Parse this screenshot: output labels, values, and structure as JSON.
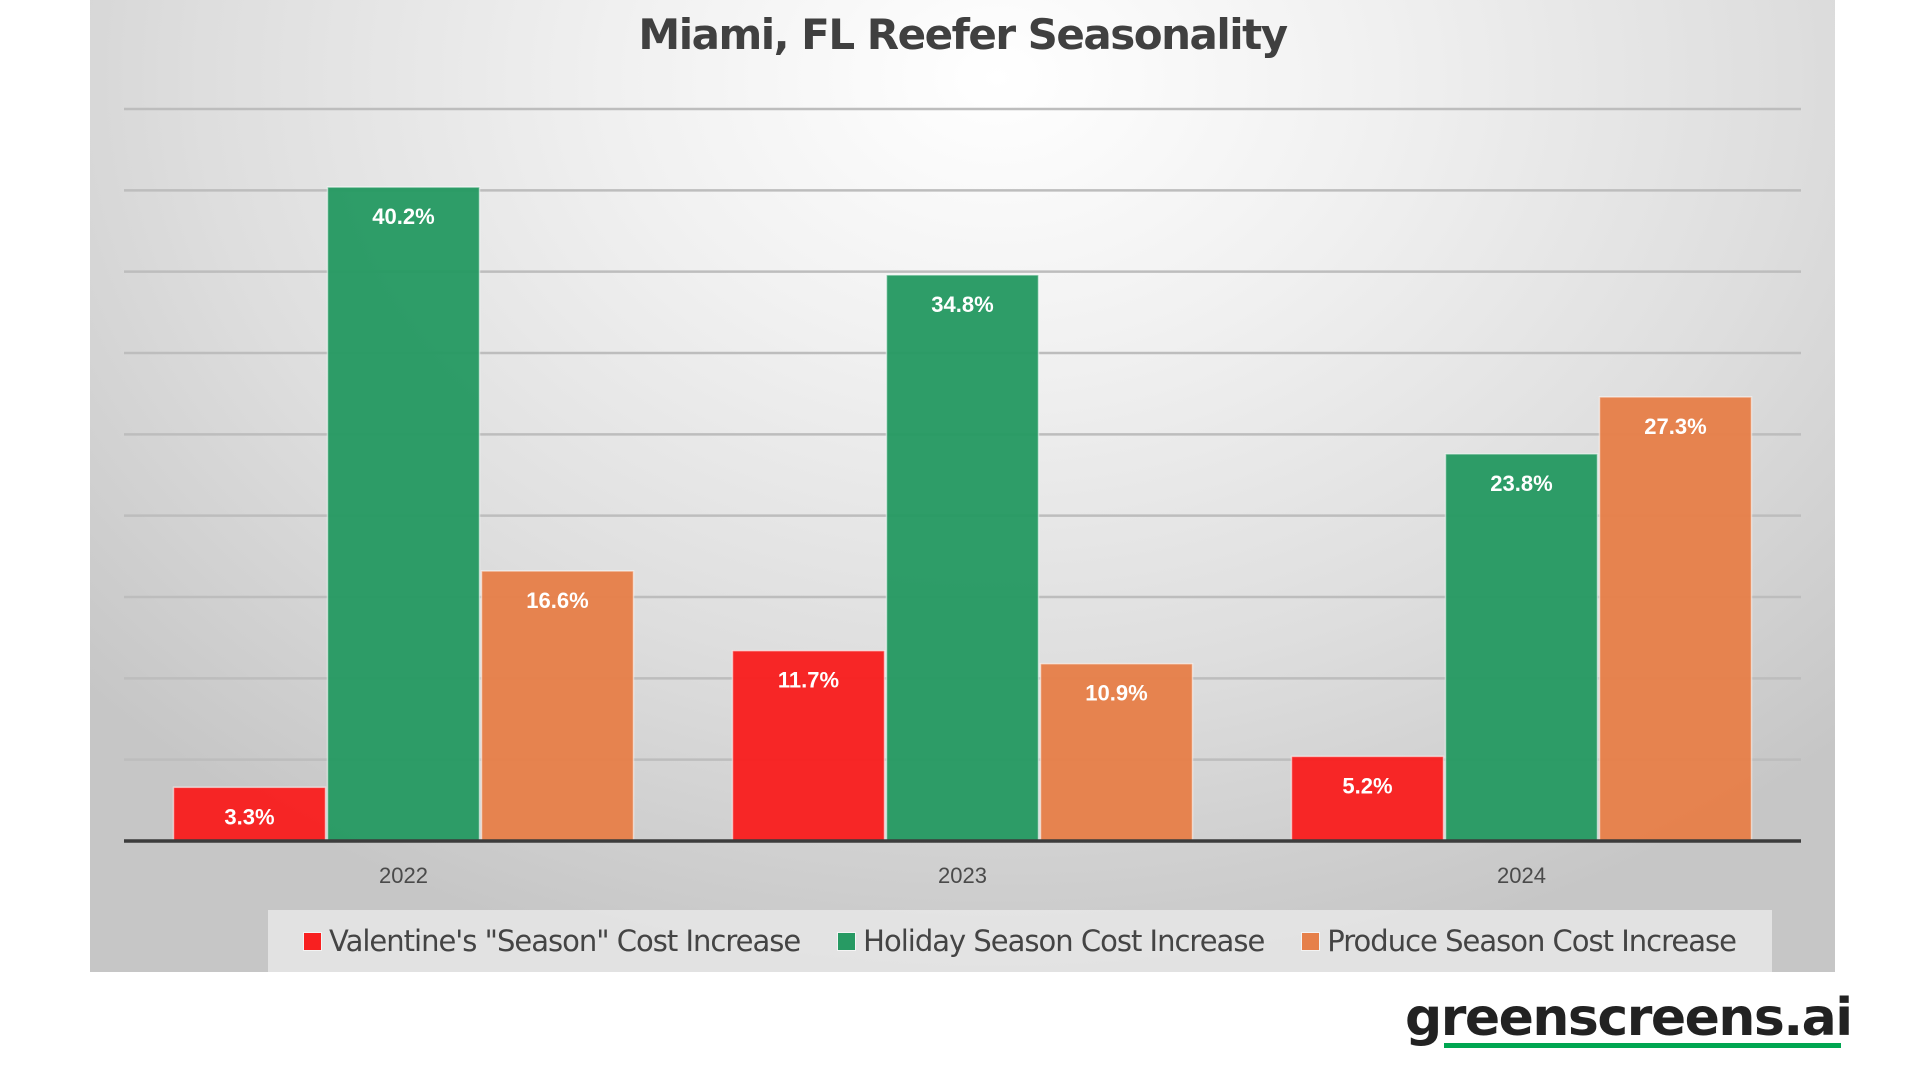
{
  "colors": {
    "valentines": "#f82020",
    "holiday": "#279a63",
    "produce": "#e6804a",
    "title": "#404040",
    "axis": "#3c3c3c",
    "gridline": "#bdbdbd",
    "data_label": "#ffffff",
    "logo_text": "#222222",
    "logo_underline": "#00a651"
  },
  "logo": {
    "text": "greenscreens.ai"
  },
  "chart_data": {
    "type": "bar",
    "title": "Miami, FL Reefer Seasonality",
    "xlabel": "",
    "ylabel": "",
    "categories": [
      "2022",
      "2023",
      "2024"
    ],
    "series": [
      {
        "name": "Valentine's \"Season\" Cost Increase",
        "color_key": "valentines",
        "values": [
          3.3,
          11.7,
          5.2
        ],
        "labels": [
          "3.3%",
          "11.7%",
          "5.2%"
        ]
      },
      {
        "name": "Holiday Season Cost Increase",
        "color_key": "holiday",
        "values": [
          40.2,
          34.8,
          23.8
        ],
        "labels": [
          "40.2%",
          "34.8%",
          "23.8%"
        ]
      },
      {
        "name": "Produce Season Cost Increase",
        "color_key": "produce",
        "values": [
          16.6,
          10.9,
          27.3
        ],
        "labels": [
          "16.6%",
          "10.9%",
          "27.3%"
        ]
      }
    ],
    "ylim": [
      0,
      45
    ],
    "y_grid_step": 5,
    "y_tick_labels_shown": false,
    "grid": true,
    "legend_position": "bottom"
  }
}
